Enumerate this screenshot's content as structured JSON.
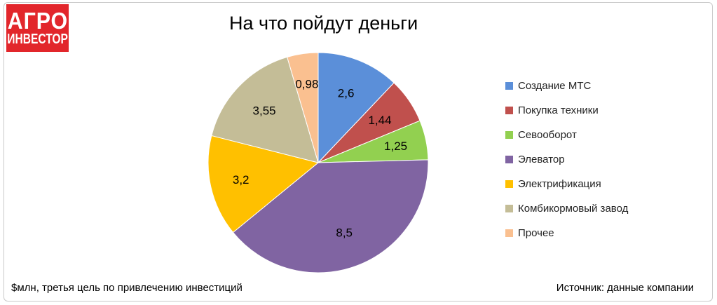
{
  "logo": {
    "line1": "АГРО",
    "line2": "ИНВЕСТОР"
  },
  "chart_data": {
    "type": "pie",
    "title": "На что пойдут деньги",
    "categories": [
      "Создание МТС",
      "Покупка техники",
      "Севооборот",
      "Элеватор",
      "Электрификация",
      "Комбикормовый завод",
      "Прочее"
    ],
    "values": [
      2.6,
      1.44,
      1.25,
      8.5,
      3.2,
      3.55,
      0.98
    ],
    "value_labels": [
      "2,6",
      "1,44",
      "1,25",
      "8,5",
      "3,2",
      "3,55",
      "0,98"
    ],
    "colors": [
      "#5b8fd9",
      "#c0504d",
      "#92d050",
      "#8064a2",
      "#ffc000",
      "#c4bd97",
      "#fac090"
    ],
    "legend_position": "right",
    "start_angle": "12 o'clock, clockwise"
  },
  "footnote": "$млн, третья цель по привлечению инвестиций",
  "source": "Источник: данные компании"
}
